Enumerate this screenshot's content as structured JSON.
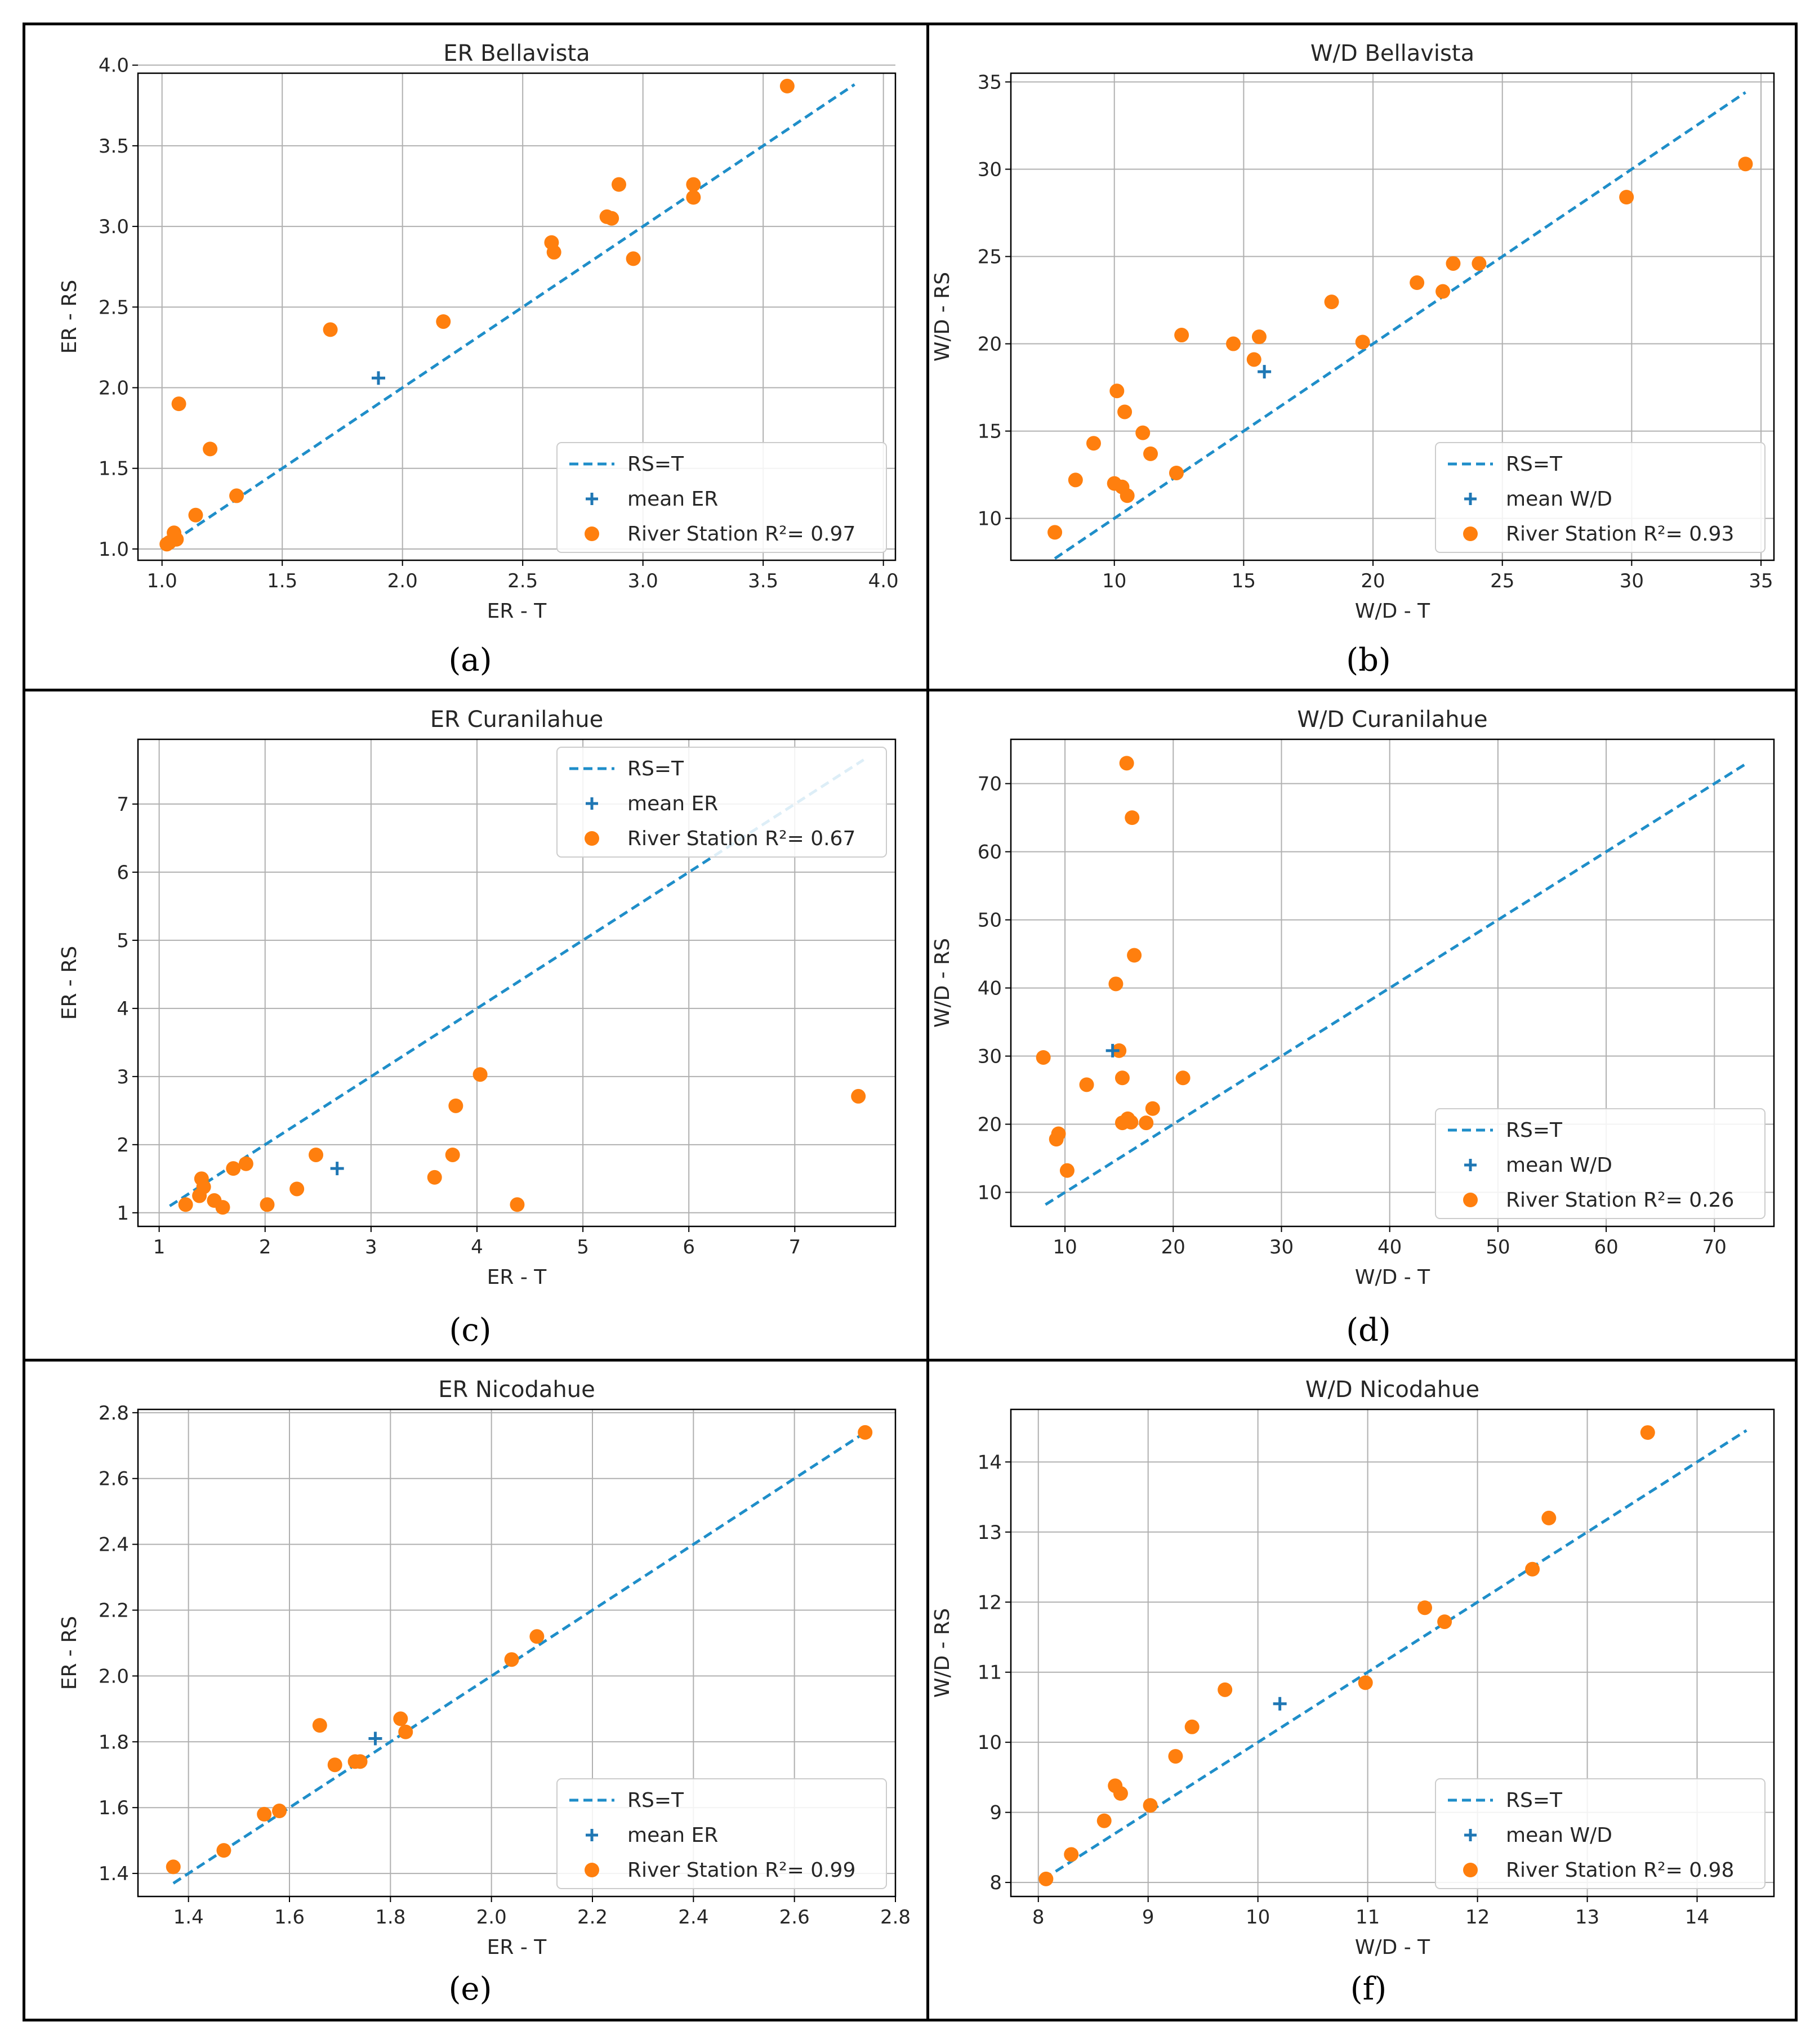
{
  "chart_data": [
    {
      "type": "scatter",
      "title": "ER Bellavista",
      "xlabel": "ER - T",
      "ylabel": "ER - RS",
      "caption": "(a)",
      "xlim": [
        0.9,
        4.05
      ],
      "ylim": [
        0.93,
        3.95
      ],
      "xticks": [
        1.0,
        1.5,
        2.0,
        2.5,
        3.0,
        3.5,
        4.0
      ],
      "yticks": [
        1.0,
        1.5,
        2.0,
        2.5,
        3.0,
        3.5,
        4.0
      ],
      "tick_decimals": 1,
      "legend_position": "lower-right",
      "legend": [
        "RS=T",
        "mean ER",
        "River Station R²= 0.97"
      ],
      "identity_line": [
        1.0,
        3.88
      ],
      "mean_point": [
        1.9,
        2.06
      ],
      "points": [
        [
          1.02,
          1.03
        ],
        [
          1.03,
          1.04
        ],
        [
          1.05,
          1.1
        ],
        [
          1.06,
          1.06
        ],
        [
          1.07,
          1.9
        ],
        [
          1.14,
          1.21
        ],
        [
          1.2,
          1.62
        ],
        [
          1.31,
          1.33
        ],
        [
          1.7,
          2.36
        ],
        [
          2.17,
          2.41
        ],
        [
          2.62,
          2.9
        ],
        [
          2.63,
          2.84
        ],
        [
          2.85,
          3.06
        ],
        [
          2.87,
          3.05
        ],
        [
          2.9,
          3.26
        ],
        [
          2.96,
          2.8
        ],
        [
          3.21,
          3.26
        ],
        [
          3.21,
          3.18
        ],
        [
          3.6,
          3.87
        ]
      ]
    },
    {
      "type": "scatter",
      "title": "W/D Bellavista",
      "xlabel": "W/D - T",
      "ylabel": "W/D - RS",
      "caption": "(b)",
      "xlim": [
        6.0,
        35.5
      ],
      "ylim": [
        7.6,
        35.5
      ],
      "xticks": [
        10,
        15,
        20,
        25,
        30,
        35
      ],
      "yticks": [
        10,
        15,
        20,
        25,
        30,
        35
      ],
      "tick_decimals": 0,
      "legend_position": "lower-right",
      "legend": [
        "RS=T",
        "mean W/D",
        "River Station R²= 0.93"
      ],
      "identity_line": [
        7.7,
        34.4
      ],
      "mean_point": [
        15.8,
        18.4
      ],
      "points": [
        [
          7.7,
          9.2
        ],
        [
          8.5,
          12.2
        ],
        [
          9.2,
          14.3
        ],
        [
          10.0,
          12.0
        ],
        [
          10.1,
          17.3
        ],
        [
          10.3,
          11.8
        ],
        [
          10.4,
          16.1
        ],
        [
          10.5,
          11.3
        ],
        [
          11.1,
          14.9
        ],
        [
          11.4,
          13.7
        ],
        [
          12.4,
          12.6
        ],
        [
          12.6,
          20.5
        ],
        [
          14.6,
          20.0
        ],
        [
          15.4,
          19.1
        ],
        [
          15.6,
          20.4
        ],
        [
          18.4,
          22.4
        ],
        [
          19.6,
          20.1
        ],
        [
          21.7,
          23.5
        ],
        [
          22.7,
          23.0
        ],
        [
          23.1,
          24.6
        ],
        [
          24.1,
          24.6
        ],
        [
          29.8,
          28.4
        ],
        [
          34.4,
          30.3
        ]
      ]
    },
    {
      "type": "scatter",
      "title": "ER Curanilahue",
      "xlabel": "ER - T",
      "ylabel": "ER - RS",
      "caption": "(c)",
      "xlim": [
        0.8,
        7.95
      ],
      "ylim": [
        0.8,
        7.95
      ],
      "xticks": [
        1,
        2,
        3,
        4,
        5,
        6,
        7
      ],
      "yticks": [
        1,
        2,
        3,
        4,
        5,
        6,
        7
      ],
      "tick_decimals": 0,
      "legend_position": "upper-right",
      "legend": [
        "RS=T",
        "mean ER",
        "River Station R²= 0.67"
      ],
      "identity_line": [
        1.1,
        7.65
      ],
      "mean_point": [
        2.68,
        1.65
      ],
      "points": [
        [
          1.25,
          1.12
        ],
        [
          1.38,
          1.25
        ],
        [
          1.4,
          1.5
        ],
        [
          1.42,
          1.38
        ],
        [
          1.52,
          1.18
        ],
        [
          1.6,
          1.08
        ],
        [
          1.7,
          1.65
        ],
        [
          1.82,
          1.72
        ],
        [
          2.02,
          1.12
        ],
        [
          2.3,
          1.35
        ],
        [
          2.48,
          1.85
        ],
        [
          3.6,
          1.52
        ],
        [
          3.77,
          1.85
        ],
        [
          3.8,
          2.57
        ],
        [
          4.03,
          3.03
        ],
        [
          4.38,
          1.12
        ],
        [
          7.6,
          2.71
        ]
      ]
    },
    {
      "type": "scatter",
      "title": "W/D Curanilahue",
      "xlabel": "W/D - T",
      "ylabel": "W/D - RS",
      "caption": "(d)",
      "xlim": [
        5.0,
        75.5
      ],
      "ylim": [
        5.0,
        76.5
      ],
      "xticks": [
        10,
        20,
        30,
        40,
        50,
        60,
        70
      ],
      "yticks": [
        10,
        20,
        30,
        40,
        50,
        60,
        70
      ],
      "tick_decimals": 0,
      "legend_position": "lower-right",
      "legend": [
        "RS=T",
        "mean W/D",
        "River Station R²= 0.26"
      ],
      "identity_line": [
        8.2,
        73.0
      ],
      "mean_point": [
        14.4,
        30.8
      ],
      "points": [
        [
          8.0,
          29.8
        ],
        [
          9.2,
          17.8
        ],
        [
          9.4,
          18.6
        ],
        [
          10.2,
          13.2
        ],
        [
          12.0,
          25.8
        ],
        [
          14.7,
          40.6
        ],
        [
          15.0,
          30.8
        ],
        [
          15.3,
          20.2
        ],
        [
          15.3,
          26.8
        ],
        [
          15.7,
          73.0
        ],
        [
          15.8,
          20.8
        ],
        [
          16.1,
          20.3
        ],
        [
          16.2,
          65.0
        ],
        [
          16.4,
          44.8
        ],
        [
          17.5,
          20.2
        ],
        [
          18.1,
          22.3
        ],
        [
          20.9,
          26.8
        ]
      ]
    },
    {
      "type": "scatter",
      "title": "ER Nicodahue",
      "xlabel": "ER - T",
      "ylabel": "ER - RS",
      "caption": "(e)",
      "xlim": [
        1.3,
        2.8
      ],
      "ylim": [
        1.33,
        2.81
      ],
      "xticks": [
        1.4,
        1.6,
        1.8,
        2.0,
        2.2,
        2.4,
        2.6,
        2.8
      ],
      "yticks": [
        1.4,
        1.6,
        1.8,
        2.0,
        2.2,
        2.4,
        2.6,
        2.8
      ],
      "tick_decimals": 1,
      "legend_position": "lower-right",
      "legend": [
        "RS=T",
        "mean ER",
        "River Station R²= 0.99"
      ],
      "identity_line": [
        1.37,
        2.74
      ],
      "mean_point": [
        1.77,
        1.81
      ],
      "points": [
        [
          1.37,
          1.42
        ],
        [
          1.47,
          1.47
        ],
        [
          1.55,
          1.58
        ],
        [
          1.58,
          1.59
        ],
        [
          1.66,
          1.85
        ],
        [
          1.69,
          1.73
        ],
        [
          1.73,
          1.74
        ],
        [
          1.74,
          1.74
        ],
        [
          1.82,
          1.87
        ],
        [
          1.83,
          1.83
        ],
        [
          2.04,
          2.05
        ],
        [
          2.09,
          2.12
        ],
        [
          2.74,
          2.74
        ]
      ]
    },
    {
      "type": "scatter",
      "title": "W/D Nicodahue",
      "xlabel": "W/D - T",
      "ylabel": "W/D - RS",
      "caption": "(f)",
      "xlim": [
        7.75,
        14.7
      ],
      "ylim": [
        7.8,
        14.75
      ],
      "xticks": [
        8,
        9,
        10,
        11,
        12,
        13,
        14
      ],
      "yticks": [
        8,
        9,
        10,
        11,
        12,
        13,
        14
      ],
      "tick_decimals": 0,
      "legend_position": "lower-right",
      "legend": [
        "RS=T",
        "mean W/D",
        "River Station R²= 0.98"
      ],
      "identity_line": [
        8.05,
        14.45
      ],
      "mean_point": [
        10.2,
        10.55
      ],
      "points": [
        [
          8.07,
          8.05
        ],
        [
          8.3,
          8.4
        ],
        [
          8.6,
          8.88
        ],
        [
          8.7,
          9.38
        ],
        [
          8.75,
          9.27
        ],
        [
          9.02,
          9.1
        ],
        [
          9.25,
          9.8
        ],
        [
          9.4,
          10.22
        ],
        [
          9.7,
          10.75
        ],
        [
          10.98,
          10.85
        ],
        [
          11.52,
          11.92
        ],
        [
          11.7,
          11.72
        ],
        [
          12.5,
          12.47
        ],
        [
          12.65,
          13.2
        ],
        [
          13.55,
          14.42
        ]
      ]
    }
  ],
  "colors": {
    "identity_line": "#1f8ec9",
    "mean_marker": "#1f77b4",
    "station_points": "#ff7f0e",
    "grid": "#b0b0b0"
  }
}
